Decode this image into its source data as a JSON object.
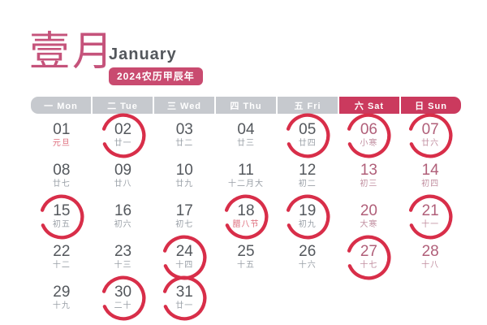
{
  "header": {
    "month_cn": "壹月",
    "month_en": "January",
    "year_badge": "2024农历甲辰年"
  },
  "weekdays": [
    {
      "label": "一 Mon",
      "weekend": false
    },
    {
      "label": "二 Tue",
      "weekend": false
    },
    {
      "label": "三 Wed",
      "weekend": false
    },
    {
      "label": "四 Thu",
      "weekend": false
    },
    {
      "label": "五 Fri",
      "weekend": false
    },
    {
      "label": "六 Sat",
      "weekend": true
    },
    {
      "label": "日 Sun",
      "weekend": true
    }
  ],
  "days": [
    {
      "num": "01",
      "sub": "元旦",
      "sub_type": "holiday",
      "weekend": false,
      "circled": false
    },
    {
      "num": "02",
      "sub": "廿一",
      "sub_type": "normal",
      "weekend": false,
      "circled": true
    },
    {
      "num": "03",
      "sub": "廿二",
      "sub_type": "normal",
      "weekend": false,
      "circled": false
    },
    {
      "num": "04",
      "sub": "廿三",
      "sub_type": "normal",
      "weekend": false,
      "circled": false
    },
    {
      "num": "05",
      "sub": "廿四",
      "sub_type": "normal",
      "weekend": false,
      "circled": true
    },
    {
      "num": "06",
      "sub": "小寒",
      "sub_type": "holiday",
      "weekend": true,
      "circled": true
    },
    {
      "num": "07",
      "sub": "廿六",
      "sub_type": "normal",
      "weekend": true,
      "circled": true
    },
    {
      "num": "08",
      "sub": "廿七",
      "sub_type": "normal",
      "weekend": false,
      "circled": false
    },
    {
      "num": "09",
      "sub": "廿八",
      "sub_type": "normal",
      "weekend": false,
      "circled": false
    },
    {
      "num": "10",
      "sub": "廿九",
      "sub_type": "normal",
      "weekend": false,
      "circled": false
    },
    {
      "num": "11",
      "sub": "十二月大",
      "sub_type": "normal",
      "weekend": false,
      "circled": false
    },
    {
      "num": "12",
      "sub": "初二",
      "sub_type": "normal",
      "weekend": false,
      "circled": false
    },
    {
      "num": "13",
      "sub": "初三",
      "sub_type": "normal",
      "weekend": true,
      "circled": false
    },
    {
      "num": "14",
      "sub": "初四",
      "sub_type": "normal",
      "weekend": true,
      "circled": false
    },
    {
      "num": "15",
      "sub": "初五",
      "sub_type": "normal",
      "weekend": false,
      "circled": true
    },
    {
      "num": "16",
      "sub": "初六",
      "sub_type": "normal",
      "weekend": false,
      "circled": false
    },
    {
      "num": "17",
      "sub": "初七",
      "sub_type": "normal",
      "weekend": false,
      "circled": false
    },
    {
      "num": "18",
      "sub": "腊八节",
      "sub_type": "holiday",
      "weekend": false,
      "circled": true
    },
    {
      "num": "19",
      "sub": "初九",
      "sub_type": "normal",
      "weekend": false,
      "circled": true
    },
    {
      "num": "20",
      "sub": "大寒",
      "sub_type": "holiday",
      "weekend": true,
      "circled": false
    },
    {
      "num": "21",
      "sub": "十一",
      "sub_type": "normal",
      "weekend": true,
      "circled": true
    },
    {
      "num": "22",
      "sub": "十二",
      "sub_type": "normal",
      "weekend": false,
      "circled": false
    },
    {
      "num": "23",
      "sub": "十三",
      "sub_type": "normal",
      "weekend": false,
      "circled": false
    },
    {
      "num": "24",
      "sub": "十四",
      "sub_type": "normal",
      "weekend": false,
      "circled": true
    },
    {
      "num": "25",
      "sub": "十五",
      "sub_type": "normal",
      "weekend": false,
      "circled": false
    },
    {
      "num": "26",
      "sub": "十六",
      "sub_type": "normal",
      "weekend": false,
      "circled": false
    },
    {
      "num": "27",
      "sub": "十七",
      "sub_type": "normal",
      "weekend": true,
      "circled": true
    },
    {
      "num": "28",
      "sub": "十八",
      "sub_type": "normal",
      "weekend": true,
      "circled": false
    },
    {
      "num": "29",
      "sub": "十九",
      "sub_type": "normal",
      "weekend": false,
      "circled": false
    },
    {
      "num": "30",
      "sub": "二十",
      "sub_type": "normal",
      "weekend": false,
      "circled": true
    },
    {
      "num": "31",
      "sub": "廿一",
      "sub_type": "normal",
      "weekend": false,
      "circled": true
    }
  ],
  "colors": {
    "title_pink": "#c5537b",
    "badge_bg": "#c94b70",
    "header_gray": "#c6c9ce",
    "header_crimson": "#cb3a5e",
    "number_dark": "#54585d",
    "number_rose": "#b05f79",
    "sub_gray": "#9aa0a7",
    "sub_red": "#de6c7b",
    "circle_red": "#d82e49"
  }
}
